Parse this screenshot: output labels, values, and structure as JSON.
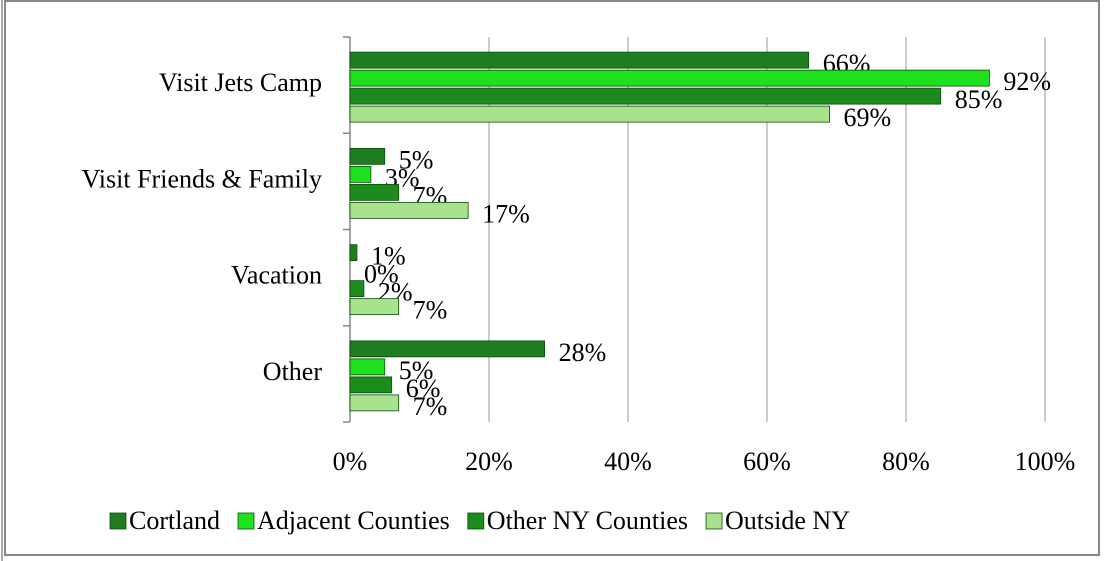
{
  "chart_data": {
    "type": "bar",
    "orientation": "horizontal",
    "categories": [
      "Visit Jets Camp",
      "Visit Friends & Family",
      "Vacation",
      "Other"
    ],
    "series": [
      {
        "name": "Cortland",
        "color": "#1f7d1f",
        "values": [
          66,
          5,
          1,
          28
        ],
        "value_labels": [
          "66%",
          "5%",
          "1%",
          "28%"
        ]
      },
      {
        "name": "Adjacent Counties",
        "color": "#1ee01e",
        "values": [
          92,
          3,
          0,
          5
        ],
        "value_labels": [
          "92%",
          "3%",
          "0%",
          "5%"
        ]
      },
      {
        "name": "Other NY Counties",
        "color": "#1b8c1b",
        "values": [
          85,
          7,
          2,
          6
        ],
        "value_labels": [
          "85%",
          "7%",
          "2%",
          "6%"
        ]
      },
      {
        "name": "Outside NY",
        "color": "#a9e28c",
        "values": [
          69,
          17,
          7,
          7
        ],
        "value_labels": [
          "69%",
          "17%",
          "7%",
          "7%"
        ]
      }
    ],
    "xlim": [
      0,
      100
    ],
    "xticks": [
      {
        "value": 0,
        "label": "0%"
      },
      {
        "value": 20,
        "label": "20%"
      },
      {
        "value": 40,
        "label": "40%"
      },
      {
        "value": 60,
        "label": "60%"
      },
      {
        "value": 80,
        "label": "80%"
      },
      {
        "value": 100,
        "label": "100%"
      }
    ],
    "grid": true,
    "legend": "bottom"
  }
}
